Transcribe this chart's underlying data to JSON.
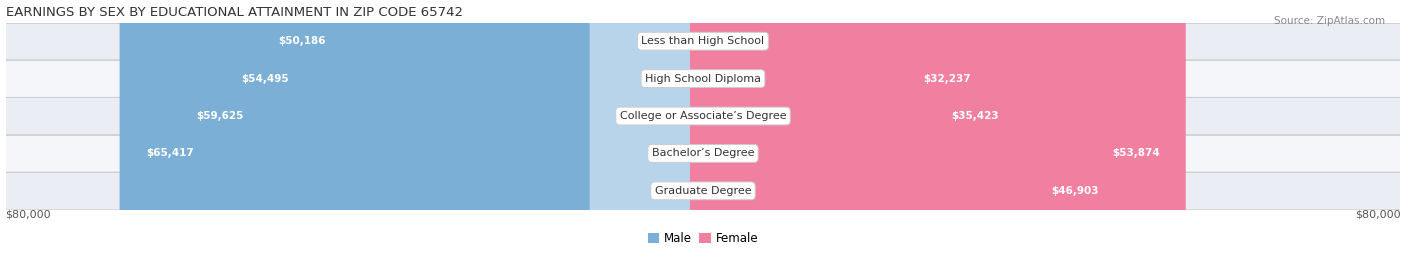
{
  "title": "EARNINGS BY SEX BY EDUCATIONAL ATTAINMENT IN ZIP CODE 65742",
  "source": "Source: ZipAtlas.com",
  "categories": [
    "Less than High School",
    "High School Diploma",
    "College or Associate’s Degree",
    "Bachelor’s Degree",
    "Graduate Degree"
  ],
  "male_values": [
    50186,
    54495,
    59625,
    65417,
    0
  ],
  "female_values": [
    0,
    32237,
    35423,
    53874,
    46903
  ],
  "male_color": "#7bafd6",
  "female_color": "#f07fa0",
  "male_color_light": "#b8d4ea",
  "row_bg_odd": "#eaeef4",
  "row_bg_even": "#f4f6f9",
  "axis_limit": 80000,
  "axis_label_left": "$80,000",
  "axis_label_right": "$80,000",
  "center_label_bg": "#ffffff",
  "center_label_border": "#cccccc",
  "title_fontsize": 9.5,
  "source_fontsize": 7.5,
  "bar_label_fontsize": 7.5,
  "category_fontsize": 8,
  "axis_fontsize": 8,
  "legend_fontsize": 8.5,
  "fig_bg_color": "#ffffff",
  "text_white": "#ffffff",
  "text_dark": "#555555"
}
